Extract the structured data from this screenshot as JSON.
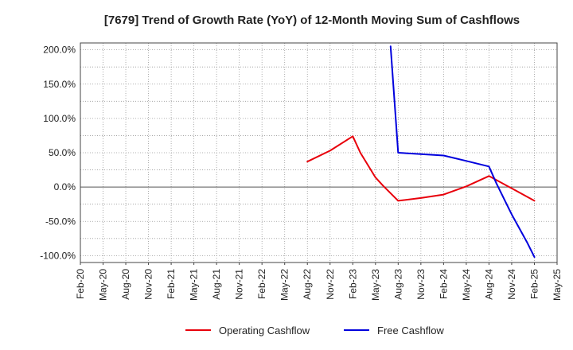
{
  "chart_data": {
    "type": "line",
    "title": "[7679]  Trend of Growth Rate (YoY) of 12-Month Moving Sum of Cashflows",
    "xlabel": "",
    "ylabel": "",
    "ylim": [
      -110,
      210
    ],
    "y_ticks": [
      {
        "value": 200,
        "label": "200.0%"
      },
      {
        "value": 150,
        "label": "150.0%"
      },
      {
        "value": 100,
        "label": "100.0%"
      },
      {
        "value": 50,
        "label": "50.0%"
      },
      {
        "value": 0,
        "label": "0.0%"
      },
      {
        "value": -50,
        "label": "-50.0%"
      },
      {
        "value": -100,
        "label": "-100.0%"
      }
    ],
    "x_ticks": [
      "Feb-20",
      "May-20",
      "Aug-20",
      "Nov-20",
      "Feb-21",
      "May-21",
      "Aug-21",
      "Nov-21",
      "Feb-22",
      "May-22",
      "Aug-22",
      "Nov-22",
      "Feb-23",
      "May-23",
      "Aug-23",
      "Nov-23",
      "Feb-24",
      "May-24",
      "Aug-24",
      "Nov-24",
      "Feb-25",
      "May-25"
    ],
    "grid": true,
    "legend_position": "bottom",
    "series": [
      {
        "name": "Operating Cashflow",
        "color": "#e8000b",
        "points": [
          {
            "x": "Aug-22",
            "y": 37
          },
          {
            "x": "Nov-22",
            "y": 53
          },
          {
            "x": "Feb-23",
            "y": 74
          },
          {
            "x": "Mar-23",
            "y": 50
          },
          {
            "x": "May-23",
            "y": 14
          },
          {
            "x": "Jun-23",
            "y": 2
          },
          {
            "x": "Aug-23",
            "y": -20
          },
          {
            "x": "Nov-23",
            "y": -16
          },
          {
            "x": "Feb-24",
            "y": -11
          },
          {
            "x": "May-24",
            "y": 1
          },
          {
            "x": "Aug-24",
            "y": 16
          },
          {
            "x": "Nov-24",
            "y": -2
          },
          {
            "x": "Feb-25",
            "y": -20
          }
        ]
      },
      {
        "name": "Free Cashflow",
        "color": "#0000dd",
        "points": [
          {
            "x": "Jul-23",
            "y": 205
          },
          {
            "x": "Aug-23",
            "y": 50
          },
          {
            "x": "Nov-23",
            "y": 48
          },
          {
            "x": "Feb-24",
            "y": 46
          },
          {
            "x": "May-24",
            "y": 38
          },
          {
            "x": "Aug-24",
            "y": 30
          },
          {
            "x": "Sep-24",
            "y": 5
          },
          {
            "x": "Nov-24",
            "y": -40
          },
          {
            "x": "Jan-25",
            "y": -80
          },
          {
            "x": "Feb-25",
            "y": -102
          }
        ]
      }
    ]
  }
}
